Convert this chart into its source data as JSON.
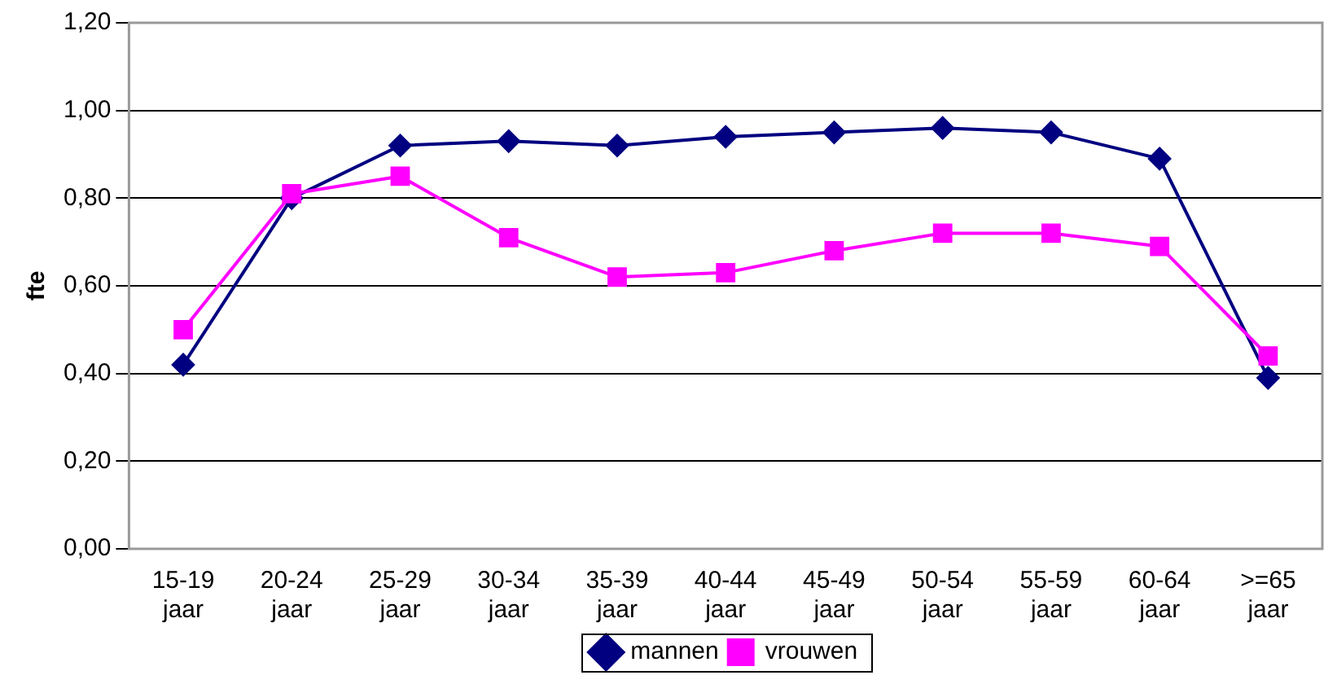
{
  "chart_data": {
    "type": "line",
    "ylabel": "fte",
    "categories": [
      "15-19 jaar",
      "20-24 jaar",
      "25-29 jaar",
      "30-34 jaar",
      "35-39 jaar",
      "40-44 jaar",
      "45-49 jaar",
      "50-54 jaar",
      "55-59 jaar",
      "60-64 jaar",
      ">=65 jaar"
    ],
    "series": [
      {
        "name": "mannen",
        "color": "#000080",
        "marker": "diamond",
        "values": [
          0.42,
          0.8,
          0.92,
          0.93,
          0.92,
          0.94,
          0.95,
          0.96,
          0.95,
          0.89,
          0.39
        ]
      },
      {
        "name": "vrouwen",
        "color": "#ff00ff",
        "marker": "square",
        "values": [
          0.5,
          0.81,
          0.85,
          0.71,
          0.62,
          0.63,
          0.68,
          0.72,
          0.72,
          0.69,
          0.44
        ]
      }
    ],
    "ylim": [
      0,
      1.2
    ],
    "yticks": [
      {
        "value": 0,
        "label": "0,00"
      },
      {
        "value": 0.2,
        "label": "0,20"
      },
      {
        "value": 0.4,
        "label": "0,40"
      },
      {
        "value": 0.6,
        "label": "0,60"
      },
      {
        "value": 0.8,
        "label": "0,80"
      },
      {
        "value": 1,
        "label": "1,00"
      },
      {
        "value": 1.2,
        "label": "1,20"
      }
    ],
    "grid": "y",
    "legend": "bottom"
  }
}
